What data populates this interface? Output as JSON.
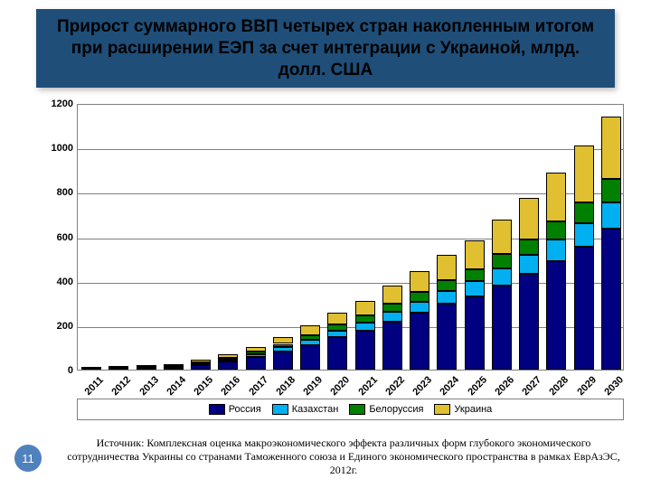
{
  "title": "Прирост суммарного ВВП четырех стран накопленным итогом при расширении ЕЭП за счет интеграции с Украиной, млрд. долл. США",
  "page_number": "11",
  "source": "Источник: Комплексная оценка макроэкономического эффекта различных форм глубокого экономического сотрудничества Украины со странами Таможенного союза и Единого экономического пространства в рамках ЕврАзЭС, 2012г.",
  "chart": {
    "type": "stacked-bar",
    "background_color": "#ffffff",
    "grid_color": "#808080",
    "title_box_bg": "#1f4e79",
    "title_fontsize": 19,
    "title_fontweight": "bold",
    "axis_fontsize": 11,
    "axis_fontweight": "bold",
    "x_rotation": -45,
    "ylim": [
      0,
      1200
    ],
    "ytick_step": 200,
    "categories": [
      "2011",
      "2012",
      "2013",
      "2014",
      "2015",
      "2016",
      "2017",
      "2018",
      "2019",
      "2020",
      "2021",
      "2022",
      "2023",
      "2024",
      "2025",
      "2026",
      "2027",
      "2028",
      "2029",
      "2030"
    ],
    "series": [
      {
        "name": "Россия",
        "color": "#000080",
        "values": [
          2,
          4,
          6,
          10,
          20,
          35,
          55,
          80,
          110,
          145,
          175,
          215,
          255,
          295,
          330,
          380,
          430,
          490,
          555,
          635
        ]
      },
      {
        "name": "Казахстан",
        "color": "#00b0f0",
        "values": [
          1,
          2,
          3,
          4,
          7,
          10,
          14,
          20,
          26,
          32,
          38,
          45,
          52,
          60,
          68,
          76,
          85,
          95,
          105,
          118
        ]
      },
      {
        "name": "Белоруссия",
        "color": "#008000",
        "values": [
          1,
          2,
          3,
          4,
          6,
          9,
          12,
          16,
          20,
          25,
          30,
          36,
          42,
          48,
          55,
          63,
          72,
          82,
          93,
          105
        ]
      },
      {
        "name": "Украина",
        "color": "#e0c030",
        "values": [
          2,
          3,
          4,
          6,
          10,
          15,
          22,
          32,
          42,
          55,
          68,
          82,
          96,
          112,
          130,
          155,
          185,
          220,
          255,
          280
        ]
      }
    ],
    "legend_labels": [
      "Россия",
      "Казахстан",
      "Белоруссия",
      "Украина"
    ]
  },
  "page_num_bg": "#4f81bd"
}
